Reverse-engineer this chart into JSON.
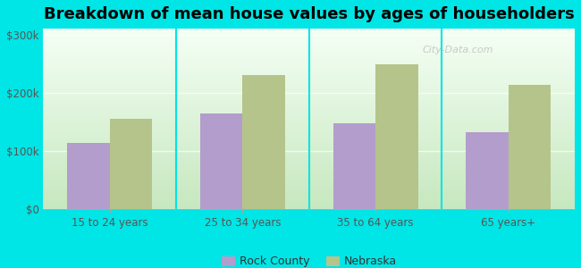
{
  "title": "Breakdown of mean house values by ages of householders",
  "categories": [
    "15 to 24 years",
    "25 to 34 years",
    "35 to 64 years",
    "65 years+"
  ],
  "rock_county": [
    113000,
    165000,
    148000,
    132000
  ],
  "nebraska": [
    155000,
    230000,
    248000,
    213000
  ],
  "rock_county_color": "#b39dcc",
  "nebraska_color": "#b5c48a",
  "background_color": "#00e5e5",
  "plot_bg_top": "#f5fff5",
  "plot_bg_bottom": "#c8e8c0",
  "ylabel_ticks": [
    0,
    100000,
    200000,
    300000
  ],
  "ylabel_labels": [
    "$0",
    "$100k",
    "$200k",
    "$300k"
  ],
  "ylim": [
    0,
    310000
  ],
  "legend_labels": [
    "Rock County",
    "Nebraska"
  ],
  "bar_width": 0.32,
  "title_fontsize": 13,
  "tick_fontsize": 8.5,
  "legend_fontsize": 9,
  "watermark": "City-Data.com"
}
